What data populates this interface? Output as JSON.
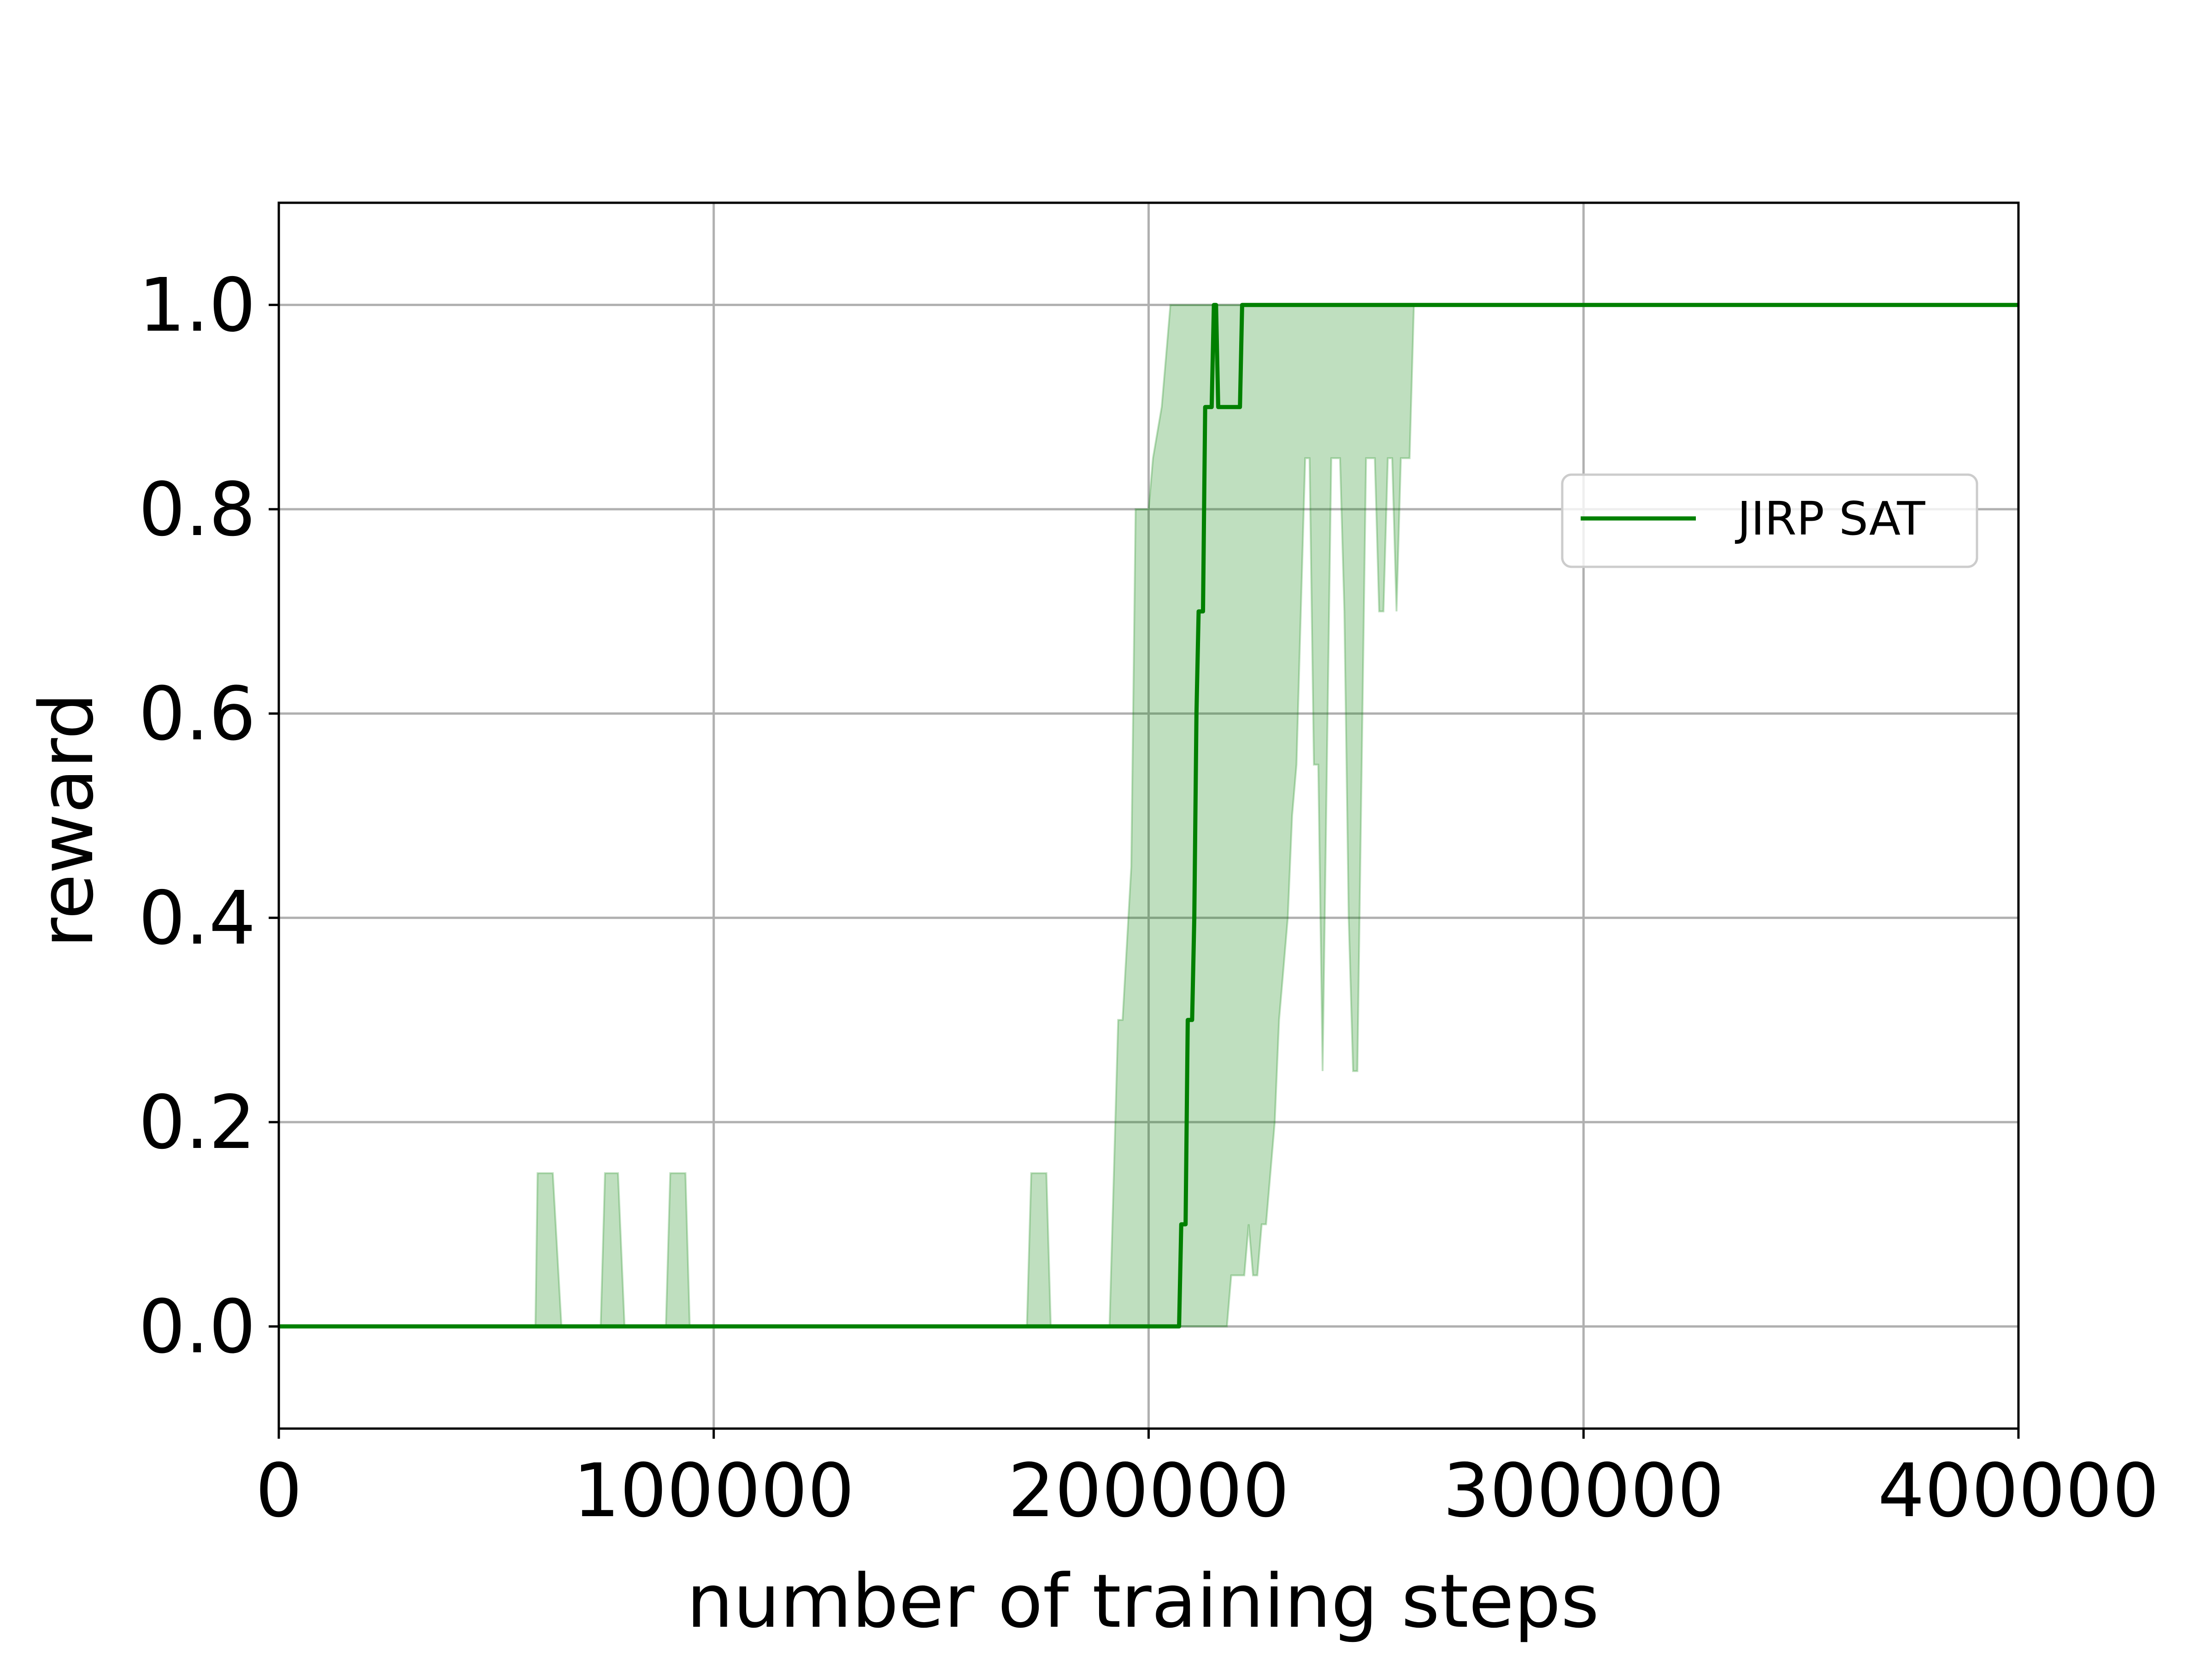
{
  "chart_data": {
    "type": "line",
    "xlabel": "number of training steps",
    "ylabel": "reward",
    "xlim": [
      0,
      400000
    ],
    "ylim": [
      -0.1,
      1.1
    ],
    "xticks": [
      0,
      100000,
      200000,
      300000,
      400000
    ],
    "xtick_labels": [
      "0",
      "100000",
      "200000",
      "300000",
      "400000"
    ],
    "yticks": [
      0.0,
      0.2,
      0.4,
      0.6,
      0.8,
      1.0
    ],
    "ytick_labels": [
      "0.0",
      "0.2",
      "0.4",
      "0.6",
      "0.8",
      "1.0"
    ],
    "grid": true,
    "legend": {
      "placement": "right",
      "entries": [
        "JIRP SAT"
      ]
    },
    "colors": {
      "line": "#008000",
      "band": "#008000",
      "grid": "#b0b0b0",
      "spine": "#000000"
    },
    "series": [
      {
        "name": "JIRP SAT",
        "x": [
          0,
          207000,
          207500,
          208500,
          209000,
          210000,
          210500,
          211000,
          211500,
          212500,
          213000,
          214500,
          215000,
          215500,
          216000,
          216500,
          217000,
          221000,
          221500,
          400000
        ],
        "y": [
          0.0,
          0.0,
          0.1,
          0.1,
          0.3,
          0.3,
          0.4,
          0.6,
          0.7,
          0.7,
          0.9,
          0.9,
          1.0,
          1.0,
          0.9,
          0.9,
          0.9,
          0.9,
          1.0,
          1.0
        ]
      }
    ],
    "band": {
      "x": [
        0,
        59000,
        59500,
        63000,
        65000,
        74000,
        75000,
        78000,
        79500,
        89000,
        90000,
        93500,
        94500,
        172000,
        173000,
        176500,
        177500,
        191000,
        192000,
        193000,
        194000,
        196000,
        197000,
        198000,
        199000,
        200000,
        201000,
        203000,
        204000,
        205000,
        206000,
        207000,
        208000,
        209000,
        210000,
        211000,
        212000,
        213000,
        214000,
        215000,
        216000,
        217000,
        218000,
        219000,
        220000,
        221000,
        222000,
        223000,
        224000,
        225000,
        226000,
        227000,
        228000,
        229000,
        230000,
        231000,
        232000,
        233000,
        234000,
        235000,
        236000,
        237000,
        238000,
        239000,
        240000,
        241000,
        242000,
        243000,
        244000,
        245000,
        246000,
        247000,
        248000,
        249000,
        250000,
        251000,
        252000,
        253000,
        254000,
        255000,
        256000,
        257000,
        258000,
        259000,
        260000,
        261000,
        262000,
        263000,
        264000,
        265000,
        266000,
        267000,
        268000,
        269000,
        270000,
        271000,
        272000,
        273000,
        274000,
        275000,
        276000,
        277000,
        278000,
        279000,
        280000,
        281000,
        282000,
        283000,
        400000
      ],
      "lower": [
        0,
        0,
        0,
        0,
        0,
        0,
        0,
        0,
        0,
        0,
        0,
        0,
        0,
        0,
        0,
        0,
        0,
        0,
        0,
        0,
        0,
        0,
        0,
        0,
        0,
        0,
        0,
        0,
        0,
        0,
        0,
        0,
        0,
        0,
        0,
        0,
        0,
        0,
        0,
        0,
        0,
        0,
        0,
        0.05,
        0.05,
        0.05,
        0.05,
        0.1,
        0.05,
        0.05,
        0.1,
        0.1,
        0.15,
        0.2,
        0.3,
        0.35,
        0.4,
        0.5,
        0.55,
        0.7,
        0.85,
        0.85,
        0.55,
        0.55,
        0.25,
        0.55,
        0.85,
        0.85,
        0.85,
        0.7,
        0.4,
        0.25,
        0.25,
        0.55,
        0.85,
        0.85,
        0.85,
        0.7,
        0.7,
        0.85,
        0.85,
        0.7,
        0.85,
        0.85,
        0.85,
        1.0,
        1.0,
        1.0,
        1.0,
        1.0,
        1.0,
        1.0,
        1.0,
        1.0,
        1.0,
        1.0,
        1.0,
        1.0,
        1.0,
        1.0,
        1.0,
        1.0,
        1.0,
        1.0,
        1.0,
        1.0,
        1.0,
        1.0,
        1.0
      ],
      "upper": [
        0,
        0,
        0.15,
        0.15,
        0,
        0,
        0.15,
        0.15,
        0,
        0,
        0.15,
        0.15,
        0,
        0,
        0.15,
        0.15,
        0,
        0,
        0.15,
        0.3,
        0.3,
        0.45,
        0.8,
        0.8,
        0.8,
        0.8,
        0.85,
        0.9,
        0.95,
        1.0,
        1.0,
        1.0,
        1.0,
        1.0,
        1.0,
        1.0,
        1.0,
        1.0,
        1.0,
        1.0,
        1.0,
        1.0,
        1.0,
        1.0,
        1.0,
        1.0,
        1.0,
        1.0,
        1.0,
        1.0,
        1.0,
        1.0,
        1.0,
        1.0,
        1.0,
        1.0,
        1.0,
        1.0,
        1.0,
        1.0,
        1.0,
        1.0,
        1.0,
        1.0,
        1.0,
        1.0,
        1.0,
        1.0,
        1.0,
        1.0,
        1.0,
        1.0,
        1.0,
        1.0,
        1.0,
        1.0,
        1.0,
        1.0,
        1.0,
        1.0,
        1.0,
        1.0,
        1.0,
        1.0,
        1.0,
        1.0,
        1.0,
        1.0,
        1.0,
        1.0,
        1.0,
        1.0,
        1.0,
        1.0,
        1.0,
        1.0,
        1.0,
        1.0,
        1.0,
        1.0,
        1.0,
        1.0,
        1.0,
        1.0,
        1.0,
        1.0,
        1.0,
        1.0,
        1.0
      ]
    }
  }
}
